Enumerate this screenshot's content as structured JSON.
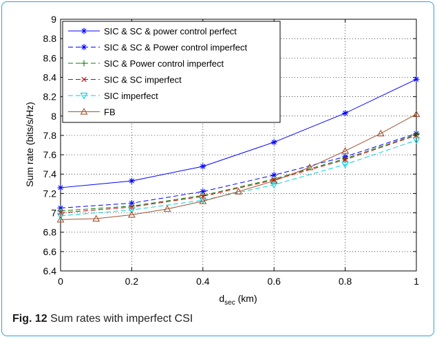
{
  "caption": {
    "fig_label": "Fig. 12",
    "text": "Sum rates with imperfect CSI"
  },
  "chart_data": {
    "type": "line",
    "title": "",
    "xlabel_main": "d",
    "xlabel_sub": "sec",
    "xlabel_unit": " (km)",
    "ylabel": "Sum rate (bits/s/Hz)",
    "xlim": [
      0,
      1
    ],
    "ylim": [
      6.4,
      9
    ],
    "grid": true,
    "legend_position": "top-left",
    "x_ticks": [
      "0",
      "0.2",
      "0.4",
      "0.6",
      "0.8",
      "1"
    ],
    "y_ticks": [
      "6.4",
      "6.6",
      "6.8",
      "7",
      "7.2",
      "7.4",
      "7.6",
      "7.8",
      "8",
      "8.2",
      "8.4",
      "8.6",
      "8.8",
      "9"
    ],
    "series": [
      {
        "name": "SIC & SC & power control perfect",
        "color": "#0000ff",
        "dash": "solid",
        "marker": "asterisk",
        "x": [
          0,
          0.2,
          0.4,
          0.6,
          0.8,
          1.0
        ],
        "y": [
          7.26,
          7.33,
          7.48,
          7.73,
          8.03,
          8.38
        ]
      },
      {
        "name": "SIC & SC &  Power control imperfect",
        "color": "#0000ff",
        "dash": "dashed",
        "marker": "asterisk",
        "x": [
          0,
          0.2,
          0.4,
          0.6,
          0.8,
          1.0
        ],
        "y": [
          7.05,
          7.1,
          7.22,
          7.39,
          7.58,
          7.82
        ]
      },
      {
        "name": "SIC &  Power control imperfect",
        "color": "#008000",
        "dash": "dashed",
        "marker": "plus",
        "x": [
          0,
          0.2,
          0.4,
          0.6,
          0.8,
          1.0
        ],
        "y": [
          7.02,
          7.07,
          7.18,
          7.35,
          7.56,
          7.81
        ]
      },
      {
        "name": "SIC & SC imperfect",
        "color": "#c00000",
        "dash": "dashed",
        "marker": "x",
        "x": [
          0,
          0.2,
          0.4,
          0.6,
          0.8,
          1.0
        ],
        "y": [
          7.0,
          7.06,
          7.17,
          7.34,
          7.55,
          7.8
        ]
      },
      {
        "name": "SIC imperfect",
        "color": "#00d0e0",
        "dash": "dashed",
        "marker": "triangle-down",
        "x": [
          0,
          0.2,
          0.4,
          0.6,
          0.8,
          1.0
        ],
        "y": [
          6.97,
          7.03,
          7.13,
          7.29,
          7.5,
          7.75
        ]
      },
      {
        "name": "FB",
        "color": "#a0522d",
        "dash": "solid",
        "marker": "triangle-up",
        "x": [
          0,
          0.1,
          0.2,
          0.3,
          0.4,
          0.5,
          0.6,
          0.7,
          0.8,
          0.9,
          1.0
        ],
        "y": [
          6.93,
          6.94,
          6.98,
          7.04,
          7.12,
          7.22,
          7.33,
          7.47,
          7.64,
          7.82,
          8.02
        ]
      }
    ]
  }
}
